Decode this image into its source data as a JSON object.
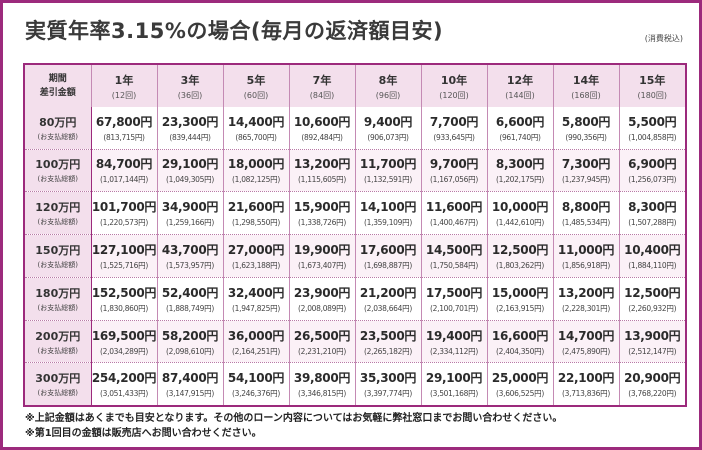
{
  "title": "実質年率3.15%の場合(毎月の返済額目安)",
  "tax_note": "(消費税込)",
  "corner": {
    "line1": "期間",
    "line2": "差引金額"
  },
  "columns": [
    {
      "label": "1年",
      "sub": "(12回)"
    },
    {
      "label": "3年",
      "sub": "(36回)"
    },
    {
      "label": "5年",
      "sub": "(60回)"
    },
    {
      "label": "7年",
      "sub": "(84回)"
    },
    {
      "label": "8年",
      "sub": "(96回)"
    },
    {
      "label": "10年",
      "sub": "(120回)"
    },
    {
      "label": "12年",
      "sub": "(144回)"
    },
    {
      "label": "14年",
      "sub": "(168回)"
    },
    {
      "label": "15年",
      "sub": "(180回)"
    }
  ],
  "rows": [
    {
      "label": "80万円",
      "sub": "(お支払総額)",
      "cells": [
        {
          "monthly": "67,800円",
          "total": "(813,715円)"
        },
        {
          "monthly": "23,300円",
          "total": "(839,444円)"
        },
        {
          "monthly": "14,400円",
          "total": "(865,700円)"
        },
        {
          "monthly": "10,600円",
          "total": "(892,484円)"
        },
        {
          "monthly": "9,400円",
          "total": "(906,073円)"
        },
        {
          "monthly": "7,700円",
          "total": "(933,645円)"
        },
        {
          "monthly": "6,600円",
          "total": "(961,740円)"
        },
        {
          "monthly": "5,800円",
          "total": "(990,356円)"
        },
        {
          "monthly": "5,500円",
          "total": "(1,004,858円)"
        }
      ]
    },
    {
      "label": "100万円",
      "sub": "(お支払総額)",
      "cells": [
        {
          "monthly": "84,700円",
          "total": "(1,017,144円)"
        },
        {
          "monthly": "29,100円",
          "total": "(1,049,305円)"
        },
        {
          "monthly": "18,000円",
          "total": "(1,082,125円)"
        },
        {
          "monthly": "13,200円",
          "total": "(1,115,605円)"
        },
        {
          "monthly": "11,700円",
          "total": "(1,132,591円)"
        },
        {
          "monthly": "9,700円",
          "total": "(1,167,056円)"
        },
        {
          "monthly": "8,300円",
          "total": "(1,202,175円)"
        },
        {
          "monthly": "7,300円",
          "total": "(1,237,945円)"
        },
        {
          "monthly": "6,900円",
          "total": "(1,256,073円)"
        }
      ]
    },
    {
      "label": "120万円",
      "sub": "(お支払総額)",
      "cells": [
        {
          "monthly": "101,700円",
          "total": "(1,220,573円)"
        },
        {
          "monthly": "34,900円",
          "total": "(1,259,166円)"
        },
        {
          "monthly": "21,600円",
          "total": "(1,298,550円)"
        },
        {
          "monthly": "15,900円",
          "total": "(1,338,726円)"
        },
        {
          "monthly": "14,100円",
          "total": "(1,359,109円)"
        },
        {
          "monthly": "11,600円",
          "total": "(1,400,467円)"
        },
        {
          "monthly": "10,000円",
          "total": "(1,442,610円)"
        },
        {
          "monthly": "8,800円",
          "total": "(1,485,534円)"
        },
        {
          "monthly": "8,300円",
          "total": "(1,507,288円)"
        }
      ]
    },
    {
      "label": "150万円",
      "sub": "(お支払総額)",
      "cells": [
        {
          "monthly": "127,100円",
          "total": "(1,525,716円)"
        },
        {
          "monthly": "43,700円",
          "total": "(1,573,957円)"
        },
        {
          "monthly": "27,000円",
          "total": "(1,623,188円)"
        },
        {
          "monthly": "19,900円",
          "total": "(1,673,407円)"
        },
        {
          "monthly": "17,600円",
          "total": "(1,698,887円)"
        },
        {
          "monthly": "14,500円",
          "total": "(1,750,584円)"
        },
        {
          "monthly": "12,500円",
          "total": "(1,803,262円)"
        },
        {
          "monthly": "11,000円",
          "total": "(1,856,918円)"
        },
        {
          "monthly": "10,400円",
          "total": "(1,884,110円)"
        }
      ]
    },
    {
      "label": "180万円",
      "sub": "(お支払総額)",
      "cells": [
        {
          "monthly": "152,500円",
          "total": "(1,830,860円)"
        },
        {
          "monthly": "52,400円",
          "total": "(1,888,749円)"
        },
        {
          "monthly": "32,400円",
          "total": "(1,947,825円)"
        },
        {
          "monthly": "23,900円",
          "total": "(2,008,089円)"
        },
        {
          "monthly": "21,200円",
          "total": "(2,038,664円)"
        },
        {
          "monthly": "17,500円",
          "total": "(2,100,701円)"
        },
        {
          "monthly": "15,000円",
          "total": "(2,163,915円)"
        },
        {
          "monthly": "13,200円",
          "total": "(2,228,301円)"
        },
        {
          "monthly": "12,500円",
          "total": "(2,260,932円)"
        }
      ]
    },
    {
      "label": "200万円",
      "sub": "(お支払総額)",
      "cells": [
        {
          "monthly": "169,500円",
          "total": "(2,034,289円)"
        },
        {
          "monthly": "58,200円",
          "total": "(2,098,610円)"
        },
        {
          "monthly": "36,000円",
          "total": "(2,164,251円)"
        },
        {
          "monthly": "26,500円",
          "total": "(2,231,210円)"
        },
        {
          "monthly": "23,500円",
          "total": "(2,265,182円)"
        },
        {
          "monthly": "19,400円",
          "total": "(2,334,112円)"
        },
        {
          "monthly": "16,600円",
          "total": "(2,404,350円)"
        },
        {
          "monthly": "14,700円",
          "total": "(2,475,890円)"
        },
        {
          "monthly": "13,900円",
          "total": "(2,512,147円)"
        }
      ]
    },
    {
      "label": "300万円",
      "sub": "(お支払総額)",
      "cells": [
        {
          "monthly": "254,200円",
          "total": "(3,051,433円)"
        },
        {
          "monthly": "87,400円",
          "total": "(3,147,915円)"
        },
        {
          "monthly": "54,100円",
          "total": "(3,246,376円)"
        },
        {
          "monthly": "39,800円",
          "total": "(3,346,815円)"
        },
        {
          "monthly": "35,300円",
          "total": "(3,397,774円)"
        },
        {
          "monthly": "29,100円",
          "total": "(3,501,168円)"
        },
        {
          "monthly": "25,000円",
          "total": "(3,606,525円)"
        },
        {
          "monthly": "22,100円",
          "total": "(3,713,836円)"
        },
        {
          "monthly": "20,900円",
          "total": "(3,768,220円)"
        }
      ]
    }
  ],
  "notes": [
    "※上記金額はあくまでも目安となります。その他のローン内容についてはお気軽に弊社窓口までお問い合わせください。",
    "※第1回目の金額は販売店へお問い合わせください。"
  ]
}
